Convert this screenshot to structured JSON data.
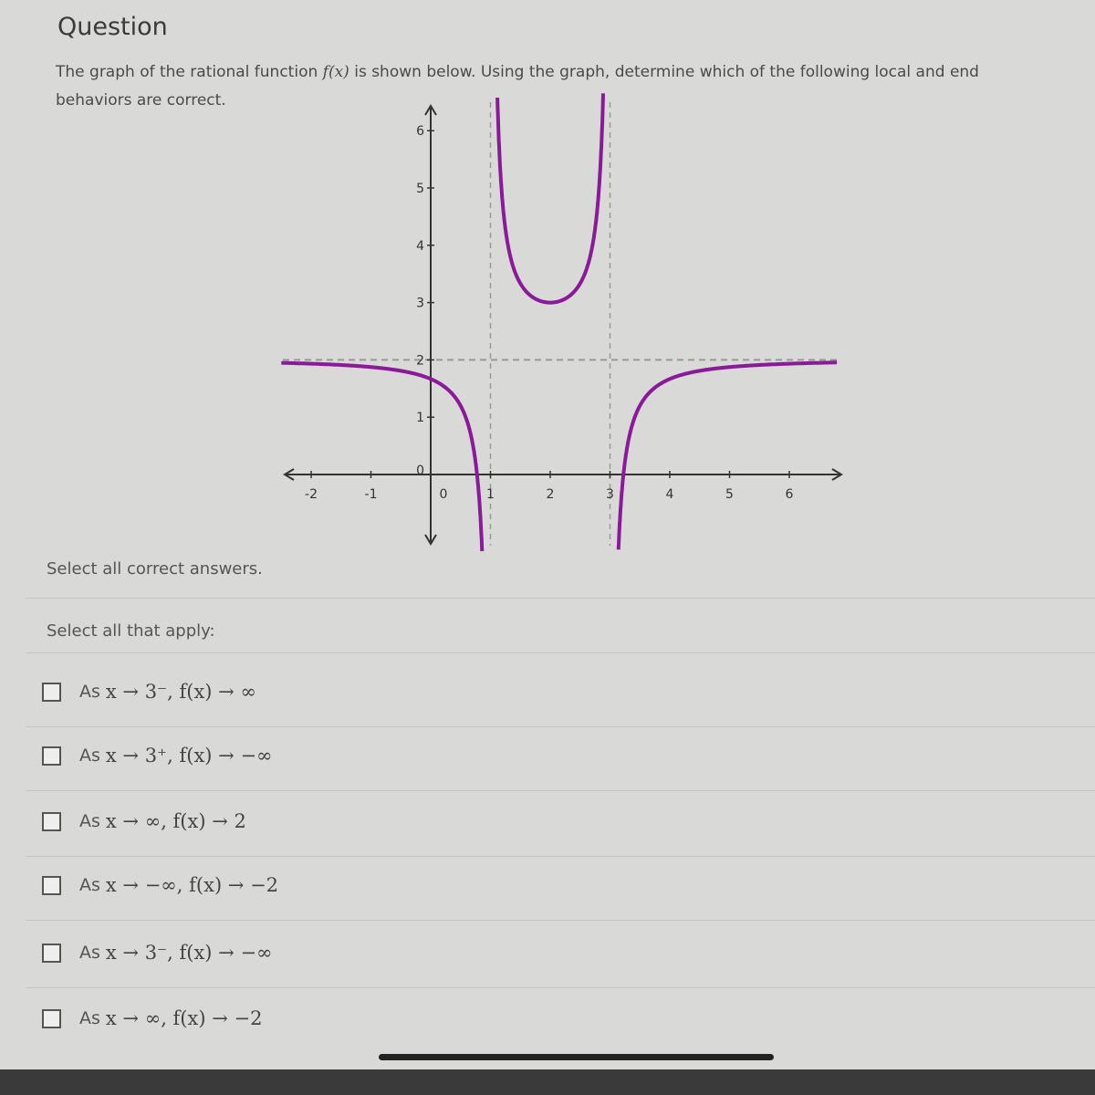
{
  "header": {
    "title": "Question"
  },
  "question": {
    "text_before": "The graph of the rational function ",
    "function_name": "f(x)",
    "text_after": " is shown below. Using the graph, determine which of the following local and end behaviors are correct."
  },
  "chart_data": {
    "type": "line",
    "x_ticks": [
      "-2",
      "-1",
      "0",
      "1",
      "2",
      "3",
      "4",
      "5",
      "6"
    ],
    "y_ticks": [
      "0",
      "1",
      "2",
      "3",
      "4",
      "5",
      "6"
    ],
    "xlim": [
      -2.5,
      6.8
    ],
    "ylim": [
      -1.2,
      6.5
    ],
    "vertical_asymptotes": [
      1,
      3
    ],
    "horizontal_asymptote": 2,
    "local_min": [
      2,
      3
    ],
    "y_intercept": 1.67,
    "x_intercepts": [
      0.78,
      3.22
    ],
    "curve_color": "#8a1a9a",
    "grid": false
  },
  "instructions": {
    "select_correct": "Select all correct answers.",
    "select_apply": "Select all that apply:"
  },
  "options": [
    {
      "prefix": "As",
      "math": "x → 3⁻, f(x) → ∞"
    },
    {
      "prefix": "As",
      "math": "x → 3⁺, f(x) → −∞"
    },
    {
      "prefix": "As",
      "math": "x → ∞, f(x) → 2"
    },
    {
      "prefix": "As",
      "math": "x → −∞, f(x) → −2"
    },
    {
      "prefix": "As",
      "math": "x → 3⁻, f(x) → −∞"
    },
    {
      "prefix": "As",
      "math": "x → ∞, f(x) → −2"
    }
  ]
}
